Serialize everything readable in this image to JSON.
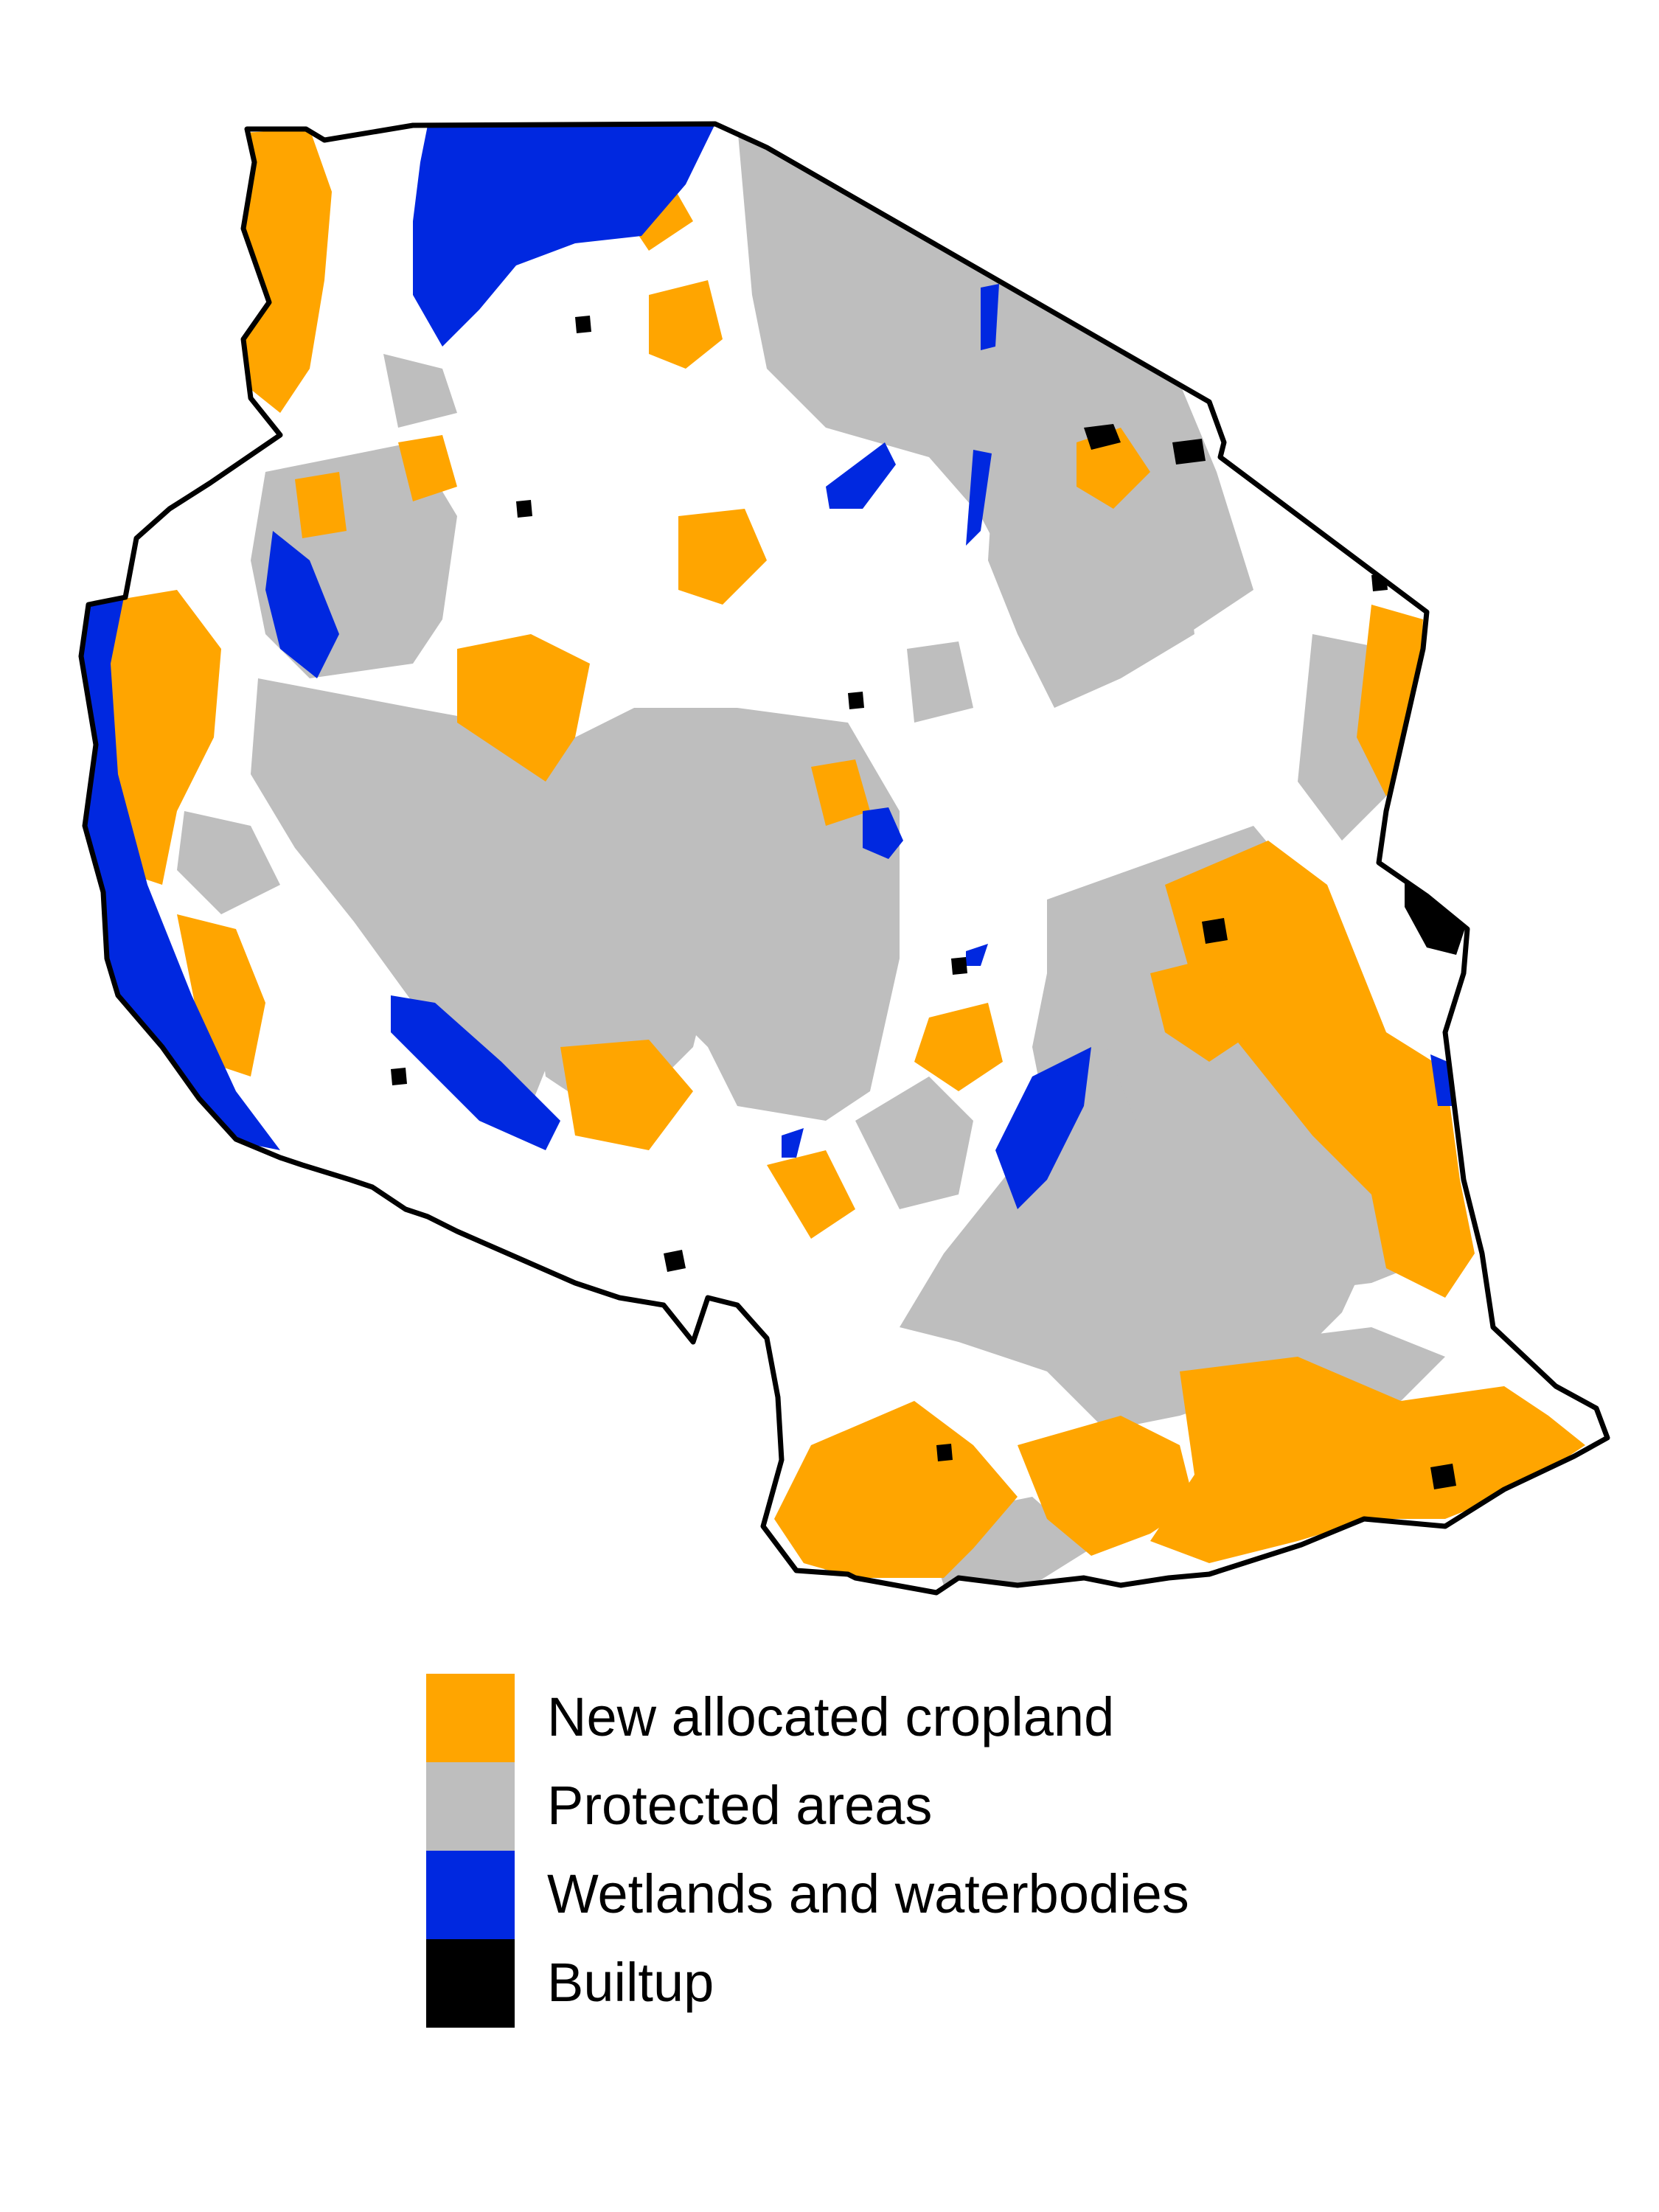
{
  "map": {
    "region_outline_color": "#000000",
    "background_color": "#ffffff",
    "classes": {
      "cropland": "#ffa500",
      "protected": "#bebebe",
      "water": "#0028e0",
      "builtup": "#000000"
    }
  },
  "legend": {
    "items": [
      {
        "key": "cropland",
        "label": "New allocated cropland",
        "color": "#ffa500"
      },
      {
        "key": "protected",
        "label": "Protected areas",
        "color": "#bebebe"
      },
      {
        "key": "water",
        "label": "Wetlands and waterbodies",
        "color": "#0028e0"
      },
      {
        "key": "builtup",
        "label": "Builtup",
        "color": "#000000"
      }
    ]
  }
}
